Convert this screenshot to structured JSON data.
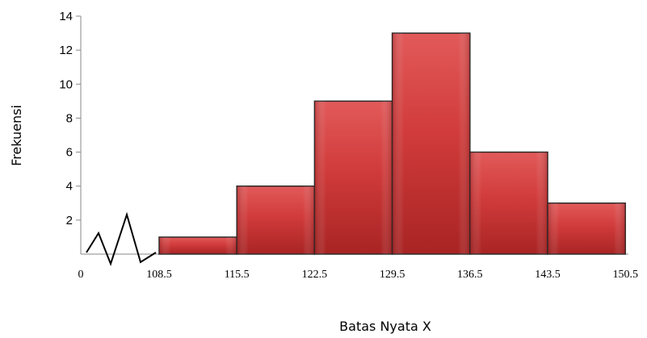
{
  "chart_data": {
    "type": "bar",
    "subtype": "histogram",
    "title": "",
    "xlabel": "Batas Nyata X",
    "ylabel": "Frekuensi",
    "x_tick_labels": [
      "0",
      "108.5",
      "115.5",
      "122.5",
      "129.5",
      "136.5",
      "143.5",
      "150.5"
    ],
    "bins": [
      {
        "from": 108.5,
        "to": 115.5,
        "value": 1
      },
      {
        "from": 115.5,
        "to": 122.5,
        "value": 4
      },
      {
        "from": 122.5,
        "to": 129.5,
        "value": 9
      },
      {
        "from": 129.5,
        "to": 136.5,
        "value": 13
      },
      {
        "from": 136.5,
        "to": 143.5,
        "value": 6
      },
      {
        "from": 143.5,
        "to": 150.5,
        "value": 3
      }
    ],
    "ylim": [
      0,
      14
    ],
    "y_ticks": [
      2,
      4,
      6,
      8,
      10,
      12,
      14
    ],
    "axis_break": true,
    "grid": false,
    "bar_color": "#d43c3c",
    "bar_edge_color": "#2a2a2a"
  }
}
